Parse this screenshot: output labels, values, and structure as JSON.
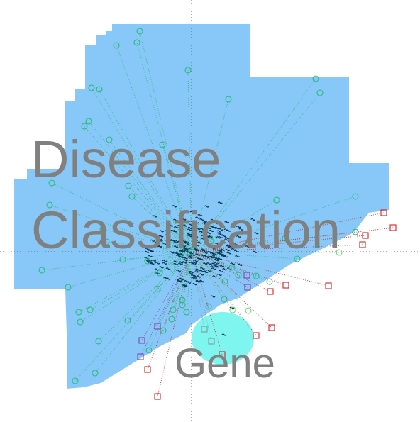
{
  "labels": {
    "disease": "Disease",
    "classification": "Classification",
    "gene": "Gene"
  },
  "colors": {
    "background": "#ffffff",
    "main_region": "#87c8f8",
    "gene_region": "#7ff5f0",
    "axis": "#606060",
    "disease_node": "#2ab87a",
    "disease_node_alt": "#6fd36f",
    "gene_node": "#d42020",
    "shared_node": "#8a3fa8",
    "mixed_node": "#7a9aa0",
    "center_cluster": "#0b3a5a",
    "label_text": "#808080"
  },
  "legend_marks": {
    "circle": "disease-node",
    "square": "gene-node"
  }
}
